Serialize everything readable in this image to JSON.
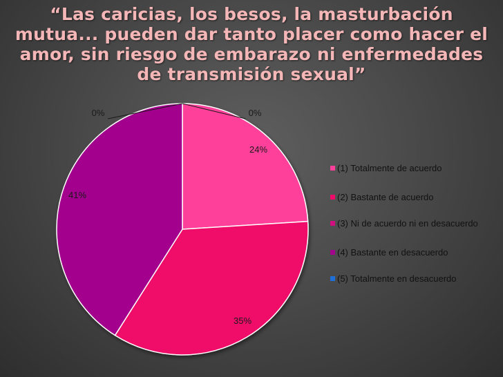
{
  "slide": {
    "title": "“Las caricias, los besos, la masturbación mutua... pueden dar tanto placer como hacer el amor, sin riesgo de embarazo ni enfermedades de transmisión sexual”"
  },
  "chart_data": {
    "type": "pie",
    "title": "",
    "legend_position": "right",
    "series": [
      {
        "labels": [
          "(1) Totalmente de acuerdo",
          "(2) Bastante de acuerdo",
          "(3) Ni de acuerdo ni en desacuerdo",
          "(4) Bastante en desacuerdo",
          "(5) Totalmente en desacuerdo"
        ],
        "values": [
          24,
          35,
          0,
          41,
          0
        ],
        "data_labels": [
          "24%",
          "35%",
          "0%",
          "41%",
          "0%"
        ],
        "colors": [
          "#ff3f9a",
          "#f00a6a",
          "#d01080",
          "#a3058d",
          "#1f6fd8"
        ]
      }
    ]
  }
}
